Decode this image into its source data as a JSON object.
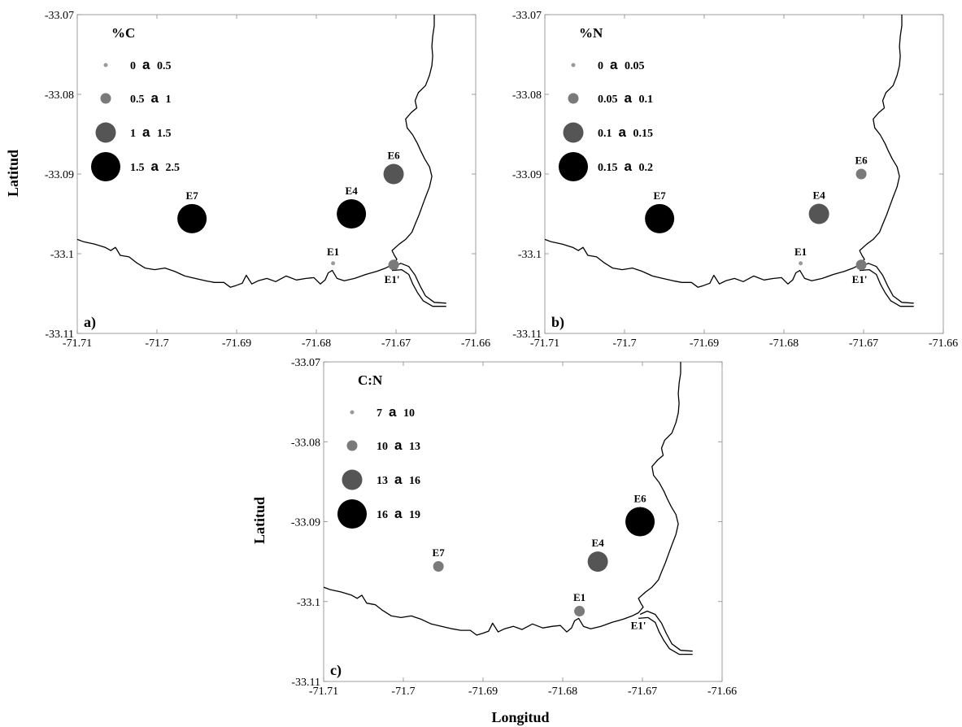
{
  "figure": {
    "xlabel": "Longitud",
    "ylabel": "Latitud",
    "x_ticks": [
      -71.71,
      -71.7,
      -71.69,
      -71.68,
      -71.67,
      -71.66
    ],
    "x_tick_labels": [
      "-71.71",
      "-71.7",
      "-71.69",
      "-71.68",
      "-71.67",
      "-71.66"
    ],
    "y_ticks": [
      -33.07,
      -33.08,
      -33.09,
      -33.1,
      -33.11
    ],
    "y_tick_labels": [
      "-33.07",
      "-33.08",
      "-33.09",
      "-33.1",
      "-33.11"
    ],
    "xlim": [
      -71.71,
      -71.66
    ],
    "ylim": [
      -33.11,
      -33.07
    ]
  },
  "coastline": {
    "shore": [
      [
        -71.71,
        -33.0982
      ],
      [
        -71.7092,
        -33.0985
      ],
      [
        -71.7078,
        -33.0988
      ],
      [
        -71.7065,
        -33.0992
      ],
      [
        -71.7058,
        -33.0996
      ],
      [
        -71.7052,
        -33.0992
      ],
      [
        -71.7046,
        -33.1002
      ],
      [
        -71.7035,
        -33.1004
      ],
      [
        -71.7026,
        -33.1011
      ],
      [
        -71.7015,
        -33.1018
      ],
      [
        -71.7003,
        -33.102
      ],
      [
        -71.699,
        -33.1018
      ],
      [
        -71.6978,
        -33.1022
      ],
      [
        -71.6965,
        -33.1028
      ],
      [
        -71.6952,
        -33.1031
      ],
      [
        -71.6939,
        -33.1034
      ],
      [
        -71.6928,
        -33.1036
      ],
      [
        -71.6916,
        -33.1036
      ],
      [
        -71.6908,
        -33.1042
      ],
      [
        -71.6901,
        -33.104
      ],
      [
        -71.6893,
        -33.1037
      ],
      [
        -71.6888,
        -33.1027
      ],
      [
        -71.6881,
        -33.1038
      ],
      [
        -71.6873,
        -33.1034
      ],
      [
        -71.6862,
        -33.1031
      ],
      [
        -71.6851,
        -33.1035
      ],
      [
        -71.6838,
        -33.1028
      ],
      [
        -71.6825,
        -33.1033
      ],
      [
        -71.6813,
        -33.1031
      ],
      [
        -71.6803,
        -33.103
      ],
      [
        -71.6795,
        -33.1038
      ],
      [
        -71.6789,
        -33.1033
      ],
      [
        -71.6785,
        -33.1024
      ],
      [
        -71.678,
        -33.1021
      ],
      [
        -71.6774,
        -33.1031
      ],
      [
        -71.6765,
        -33.1034
      ],
      [
        -71.6752,
        -33.1031
      ],
      [
        -71.6738,
        -33.1026
      ],
      [
        -71.6724,
        -33.1022
      ],
      [
        -71.6713,
        -33.1018
      ],
      [
        -71.6705,
        -33.1014
      ],
      [
        -71.6699,
        -33.1007
      ],
      [
        -71.6702,
        -33.1002
      ],
      [
        -71.6705,
        -33.0996
      ],
      [
        -71.6696,
        -33.0988
      ],
      [
        -71.6688,
        -33.0982
      ],
      [
        -71.668,
        -33.0973
      ],
      [
        -71.6676,
        -33.0963
      ],
      [
        -71.6671,
        -33.0951
      ],
      [
        -71.6667,
        -33.094
      ],
      [
        -71.6663,
        -33.0929
      ],
      [
        -71.6658,
        -33.0916
      ],
      [
        -71.6655,
        -33.0903
      ],
      [
        -71.6658,
        -33.0891
      ],
      [
        -71.6664,
        -33.0881
      ],
      [
        -71.6669,
        -33.0871
      ],
      [
        -71.6673,
        -33.0862
      ],
      [
        -71.6679,
        -33.0851
      ],
      [
        -71.6686,
        -33.0842
      ],
      [
        -71.6688,
        -33.0831
      ],
      [
        -71.6681,
        -33.0823
      ],
      [
        -71.6674,
        -33.0817
      ],
      [
        -71.6676,
        -33.0808
      ],
      [
        -71.6672,
        -33.0798
      ],
      [
        -71.6663,
        -33.0789
      ],
      [
        -71.6658,
        -33.0776
      ],
      [
        -71.6655,
        -33.0764
      ],
      [
        -71.6654,
        -33.0752
      ],
      [
        -71.6655,
        -33.074
      ],
      [
        -71.6654,
        -33.0727
      ],
      [
        -71.6652,
        -33.0714
      ],
      [
        -71.6652,
        -33.07
      ]
    ],
    "estuary_north": [
      [
        -71.6703,
        -33.1016
      ],
      [
        -71.6694,
        -33.1012
      ],
      [
        -71.6684,
        -33.1016
      ],
      [
        -71.6676,
        -33.1027
      ],
      [
        -71.667,
        -33.104
      ],
      [
        -71.6663,
        -33.1053
      ],
      [
        -71.6652,
        -33.1061
      ],
      [
        -71.6637,
        -33.1062
      ]
    ],
    "estuary_south": [
      [
        -71.6705,
        -33.1021
      ],
      [
        -71.6693,
        -33.102
      ],
      [
        -71.6684,
        -33.1026
      ],
      [
        -71.6679,
        -33.1038
      ],
      [
        -71.6673,
        -33.1049
      ],
      [
        -71.6666,
        -33.1059
      ],
      [
        -71.6654,
        -33.1066
      ],
      [
        -71.6637,
        -33.1066
      ]
    ]
  },
  "panels": [
    {
      "id": "a",
      "panel_label": "a)",
      "legend_title": "%C",
      "legend_connector": "a",
      "legend": [
        {
          "class": 1,
          "from": "0",
          "to": "0.5"
        },
        {
          "class": 2,
          "from": "0.5",
          "to": "1"
        },
        {
          "class": 3,
          "from": "1",
          "to": "1.5"
        },
        {
          "class": 4,
          "from": "1.5",
          "to": "2.5"
        }
      ],
      "stations": [
        {
          "name": "E7",
          "lon": -71.6956,
          "lat": -33.0956,
          "class": 4
        },
        {
          "name": "E4",
          "lon": -71.6756,
          "lat": -33.095,
          "class": 4
        },
        {
          "name": "E6",
          "lon": -71.6703,
          "lat": -33.09,
          "class": 3
        },
        {
          "name": "E1",
          "lon": -71.6779,
          "lat": -33.1012,
          "class": 1
        },
        {
          "name": "E1'",
          "lon": -71.6703,
          "lat": -33.1014,
          "class": 2
        }
      ]
    },
    {
      "id": "b",
      "panel_label": "b)",
      "legend_title": "%N",
      "legend_connector": "a",
      "legend": [
        {
          "class": 1,
          "from": "0",
          "to": "0.05"
        },
        {
          "class": 2,
          "from": "0.05",
          "to": "0.1"
        },
        {
          "class": 3,
          "from": "0.1",
          "to": "0.15"
        },
        {
          "class": 4,
          "from": "0.15",
          "to": "0.2"
        }
      ],
      "stations": [
        {
          "name": "E7",
          "lon": -71.6956,
          "lat": -33.0956,
          "class": 4
        },
        {
          "name": "E4",
          "lon": -71.6756,
          "lat": -33.095,
          "class": 3
        },
        {
          "name": "E6",
          "lon": -71.6703,
          "lat": -33.09,
          "class": 2
        },
        {
          "name": "E1",
          "lon": -71.6779,
          "lat": -33.1012,
          "class": 1
        },
        {
          "name": "E1'",
          "lon": -71.6703,
          "lat": -33.1014,
          "class": 2
        }
      ]
    },
    {
      "id": "c",
      "panel_label": "c)",
      "legend_title": "C:N",
      "legend_connector": "a",
      "legend": [
        {
          "class": 1,
          "from": "7",
          "to": "10"
        },
        {
          "class": 2,
          "from": "10",
          "to": "13"
        },
        {
          "class": 3,
          "from": "13",
          "to": "16"
        },
        {
          "class": 4,
          "from": "16",
          "to": "19"
        }
      ],
      "stations": [
        {
          "name": "E7",
          "lon": -71.6956,
          "lat": -33.0956,
          "class": 2
        },
        {
          "name": "E4",
          "lon": -71.6756,
          "lat": -33.095,
          "class": 3
        },
        {
          "name": "E6",
          "lon": -71.6703,
          "lat": -33.09,
          "class": 4
        },
        {
          "name": "E1",
          "lon": -71.6779,
          "lat": -33.1012,
          "class": 2
        },
        {
          "name": "E1'",
          "lon": -71.6703,
          "lat": -33.1014,
          "class": 0
        }
      ]
    }
  ],
  "symbol_classes": {
    "1": {
      "fill": "#9a9a9a"
    },
    "2": {
      "fill": "#7a7a7a"
    },
    "3": {
      "fill": "#555555"
    },
    "4": {
      "fill": "#000000"
    }
  }
}
